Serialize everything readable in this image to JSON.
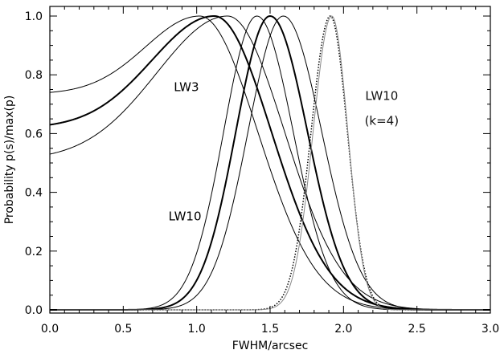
{
  "chart_data": {
    "type": "line",
    "xlabel": "FWHM/arcsec",
    "ylabel": "Probability p(s)/max(p)",
    "xlim": [
      0,
      3
    ],
    "ylim": [
      0,
      1.05
    ],
    "xticks": [
      "0.0",
      "0.5",
      "1.0",
      "1.5",
      "2.0",
      "2.5",
      "3.0"
    ],
    "xtick_values": [
      0,
      0.5,
      1,
      1.5,
      2,
      2.5,
      3
    ],
    "yticks": [
      "0.0",
      "0.2",
      "0.4",
      "0.6",
      "0.8",
      "1.0"
    ],
    "ytick_values": [
      0,
      0.2,
      0.4,
      0.6,
      0.8,
      1.0
    ],
    "grid": false,
    "annotations": [
      {
        "text": "LW3",
        "x": 0.93,
        "y": 0.745
      },
      {
        "text": "LW10",
        "x": 0.92,
        "y": 0.305
      },
      {
        "text": "LW10",
        "x": 2.26,
        "y": 0.715
      },
      {
        "text": "(k=4)",
        "x": 2.26,
        "y": 0.63
      }
    ],
    "series": [
      {
        "style": "thin",
        "peak": 1.02,
        "width_left": 0.52,
        "width_right": 0.56,
        "value_at_0": 0.74,
        "color": "#000000"
      },
      {
        "style": "thick",
        "peak": 1.12,
        "width_left": 0.6,
        "width_right": 0.55,
        "value_at_0": 0.63,
        "color": "#000000"
      },
      {
        "style": "thin",
        "peak": 1.21,
        "width_left": 0.68,
        "width_right": 0.55,
        "value_at_0": 0.53,
        "color": "#000000"
      },
      {
        "style": "thin",
        "peak": 1.41,
        "width_left": 0.32,
        "width_right": 0.35,
        "color": "#000000"
      },
      {
        "style": "thick",
        "peak": 1.5,
        "width_left": 0.33,
        "width_right": 0.36,
        "color": "#000000"
      },
      {
        "style": "thin",
        "peak": 1.59,
        "width_left": 0.34,
        "width_right": 0.37,
        "color": "#000000"
      },
      {
        "style": "dotted",
        "peak": 1.91,
        "width_left": 0.185,
        "width_right": 0.165,
        "color": "#000000"
      },
      {
        "style": "gray",
        "peak": 1.92,
        "width_left": 0.18,
        "width_right": 0.155,
        "color": "#888888"
      }
    ]
  }
}
